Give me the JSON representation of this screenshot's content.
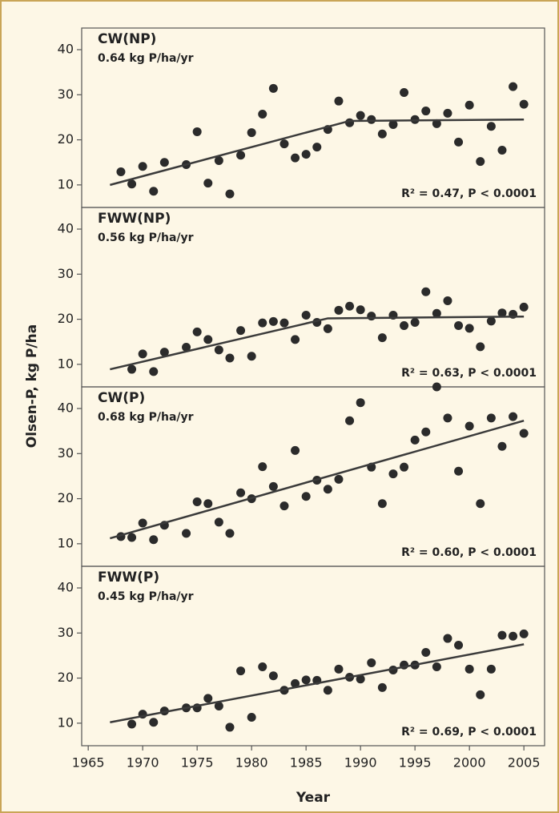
{
  "ylabel": "Olsen-P, kg P/ha",
  "chart_data": [
    {
      "type": "scatter",
      "title": "CW(NP)",
      "subtitle": "0.64 kg P/ha/yr",
      "annotation": "R² = 0.47, P < 0.0001",
      "x": [
        1968,
        1969,
        1970,
        1971,
        1972,
        1974,
        1975,
        1976,
        1977,
        1978,
        1979,
        1980,
        1981,
        1982,
        1983,
        1984,
        1985,
        1986,
        1987,
        1988,
        1989,
        1990,
        1991,
        1992,
        1993,
        1994,
        1995,
        1996,
        1997,
        1998,
        1999,
        2000,
        2001,
        2002,
        2003,
        2004,
        2005
      ],
      "values": [
        12.9,
        10.2,
        14.1,
        8.6,
        15,
        14.5,
        21.8,
        10.4,
        15.4,
        8,
        16.6,
        21.6,
        25.7,
        31.4,
        19.1,
        16,
        16.8,
        18.4,
        22.3,
        28.6,
        23.8,
        25.4,
        24.5,
        21.3,
        23.4,
        30.5,
        24.5,
        26.4,
        23.6,
        25.9,
        19.5,
        27.7,
        15.2,
        23,
        17.7,
        31.8,
        27.9
      ],
      "trend": {
        "x": [
          1967,
          1989,
          2005
        ],
        "values": [
          10,
          24.2,
          24.5
        ]
      },
      "color": "#2b2b2b",
      "xlim": [
        1964.4,
        2006.9
      ],
      "ylim": [
        5,
        44.8
      ],
      "yticks": [
        10,
        20,
        30,
        40
      ]
    },
    {
      "type": "scatter",
      "title": "FWW(NP)",
      "subtitle": "0.56 kg P/ha/yr",
      "annotation": "R² = 0.63, P < 0.0001",
      "x": [
        1969,
        1970,
        1971,
        1972,
        1974,
        1975,
        1976,
        1977,
        1978,
        1979,
        1980,
        1981,
        1982,
        1983,
        1984,
        1985,
        1986,
        1987,
        1988,
        1989,
        1990,
        1991,
        1992,
        1993,
        1994,
        1995,
        1996,
        1997,
        1998,
        1999,
        2000,
        2001,
        2002,
        2003,
        2004,
        2005
      ],
      "values": [
        8.9,
        12.3,
        8.4,
        12.7,
        13.8,
        17.2,
        15.5,
        13.2,
        11.4,
        17.5,
        11.8,
        19.2,
        19.5,
        19.2,
        15.5,
        20.9,
        19.3,
        17.9,
        22,
        22.9,
        22.1,
        20.7,
        15.9,
        20.9,
        18.6,
        19.3,
        26.1,
        21.3,
        24.1,
        18.6,
        18,
        13.9,
        19.6,
        21.4,
        21.1,
        22.7
      ],
      "trend": {
        "x": [
          1967,
          1987,
          2005
        ],
        "values": [
          8.9,
          20.2,
          20.6
        ]
      },
      "color": "#2b2b2b",
      "xlim": [
        1964.4,
        2006.9
      ],
      "ylim": [
        5,
        44.8
      ],
      "yticks": [
        10,
        20,
        30,
        40
      ]
    },
    {
      "type": "scatter",
      "title": "CW(P)",
      "subtitle": "0.68 kg P/ha/yr",
      "annotation": "R² = 0.60, P < 0.0001",
      "x": [
        1968,
        1969,
        1970,
        1971,
        1972,
        1974,
        1975,
        1976,
        1977,
        1978,
        1979,
        1980,
        1981,
        1982,
        1983,
        1984,
        1985,
        1986,
        1987,
        1988,
        1989,
        1990,
        1991,
        1992,
        1993,
        1994,
        1995,
        1996,
        1997,
        1998,
        1999,
        2000,
        2001,
        2002,
        2003,
        2004,
        2005
      ],
      "values": [
        11.6,
        11.4,
        14.6,
        10.9,
        14.1,
        12.3,
        19.3,
        18.9,
        14.8,
        12.3,
        21.3,
        20,
        27.1,
        22.7,
        18.4,
        30.7,
        20.5,
        24.1,
        22.1,
        24.3,
        37.3,
        41.3,
        27,
        18.9,
        25.5,
        27,
        33,
        34.8,
        44.8,
        37.9,
        26.1,
        36.1,
        18.9,
        37.9,
        31.6,
        38.2,
        34.5
      ],
      "trend": {
        "x": [
          1967,
          2005
        ],
        "values": [
          11.2,
          37.3
        ]
      },
      "color": "#2b2b2b",
      "xlim": [
        1964.4,
        2006.9
      ],
      "ylim": [
        5,
        44.8
      ],
      "yticks": [
        10,
        20,
        30,
        40
      ]
    },
    {
      "type": "scatter",
      "title": "FWW(P)",
      "subtitle": "0.45 kg P/ha/yr",
      "annotation": "R² = 0.69, P < 0.0001",
      "x": [
        1969,
        1970,
        1971,
        1972,
        1974,
        1975,
        1976,
        1977,
        1978,
        1979,
        1980,
        1981,
        1982,
        1983,
        1984,
        1985,
        1986,
        1987,
        1988,
        1989,
        1990,
        1991,
        1992,
        1993,
        1994,
        1995,
        1996,
        1997,
        1998,
        1999,
        2000,
        2001,
        2002,
        2003,
        2004,
        2005
      ],
      "values": [
        9.8,
        12,
        10.2,
        12.7,
        13.4,
        13.4,
        15.5,
        13.8,
        9.1,
        21.6,
        11.3,
        22.5,
        20.5,
        17.3,
        18.8,
        19.6,
        19.5,
        17.3,
        22,
        20.2,
        19.8,
        23.4,
        17.9,
        21.8,
        22.9,
        22.9,
        25.7,
        22.5,
        28.8,
        27.3,
        22,
        16.3,
        22,
        29.5,
        29.3,
        29.8
      ],
      "trend": {
        "x": [
          1967,
          2005
        ],
        "values": [
          10.2,
          27.5
        ]
      },
      "color": "#2b2b2b",
      "xlim": [
        1964.4,
        2006.9
      ],
      "ylim": [
        5,
        44.8
      ],
      "yticks": [
        10,
        20,
        30,
        40
      ],
      "xticks": [
        1965,
        1970,
        1975,
        1980,
        1985,
        1990,
        1995,
        2000,
        2005
      ],
      "xlabel": "Year"
    }
  ]
}
